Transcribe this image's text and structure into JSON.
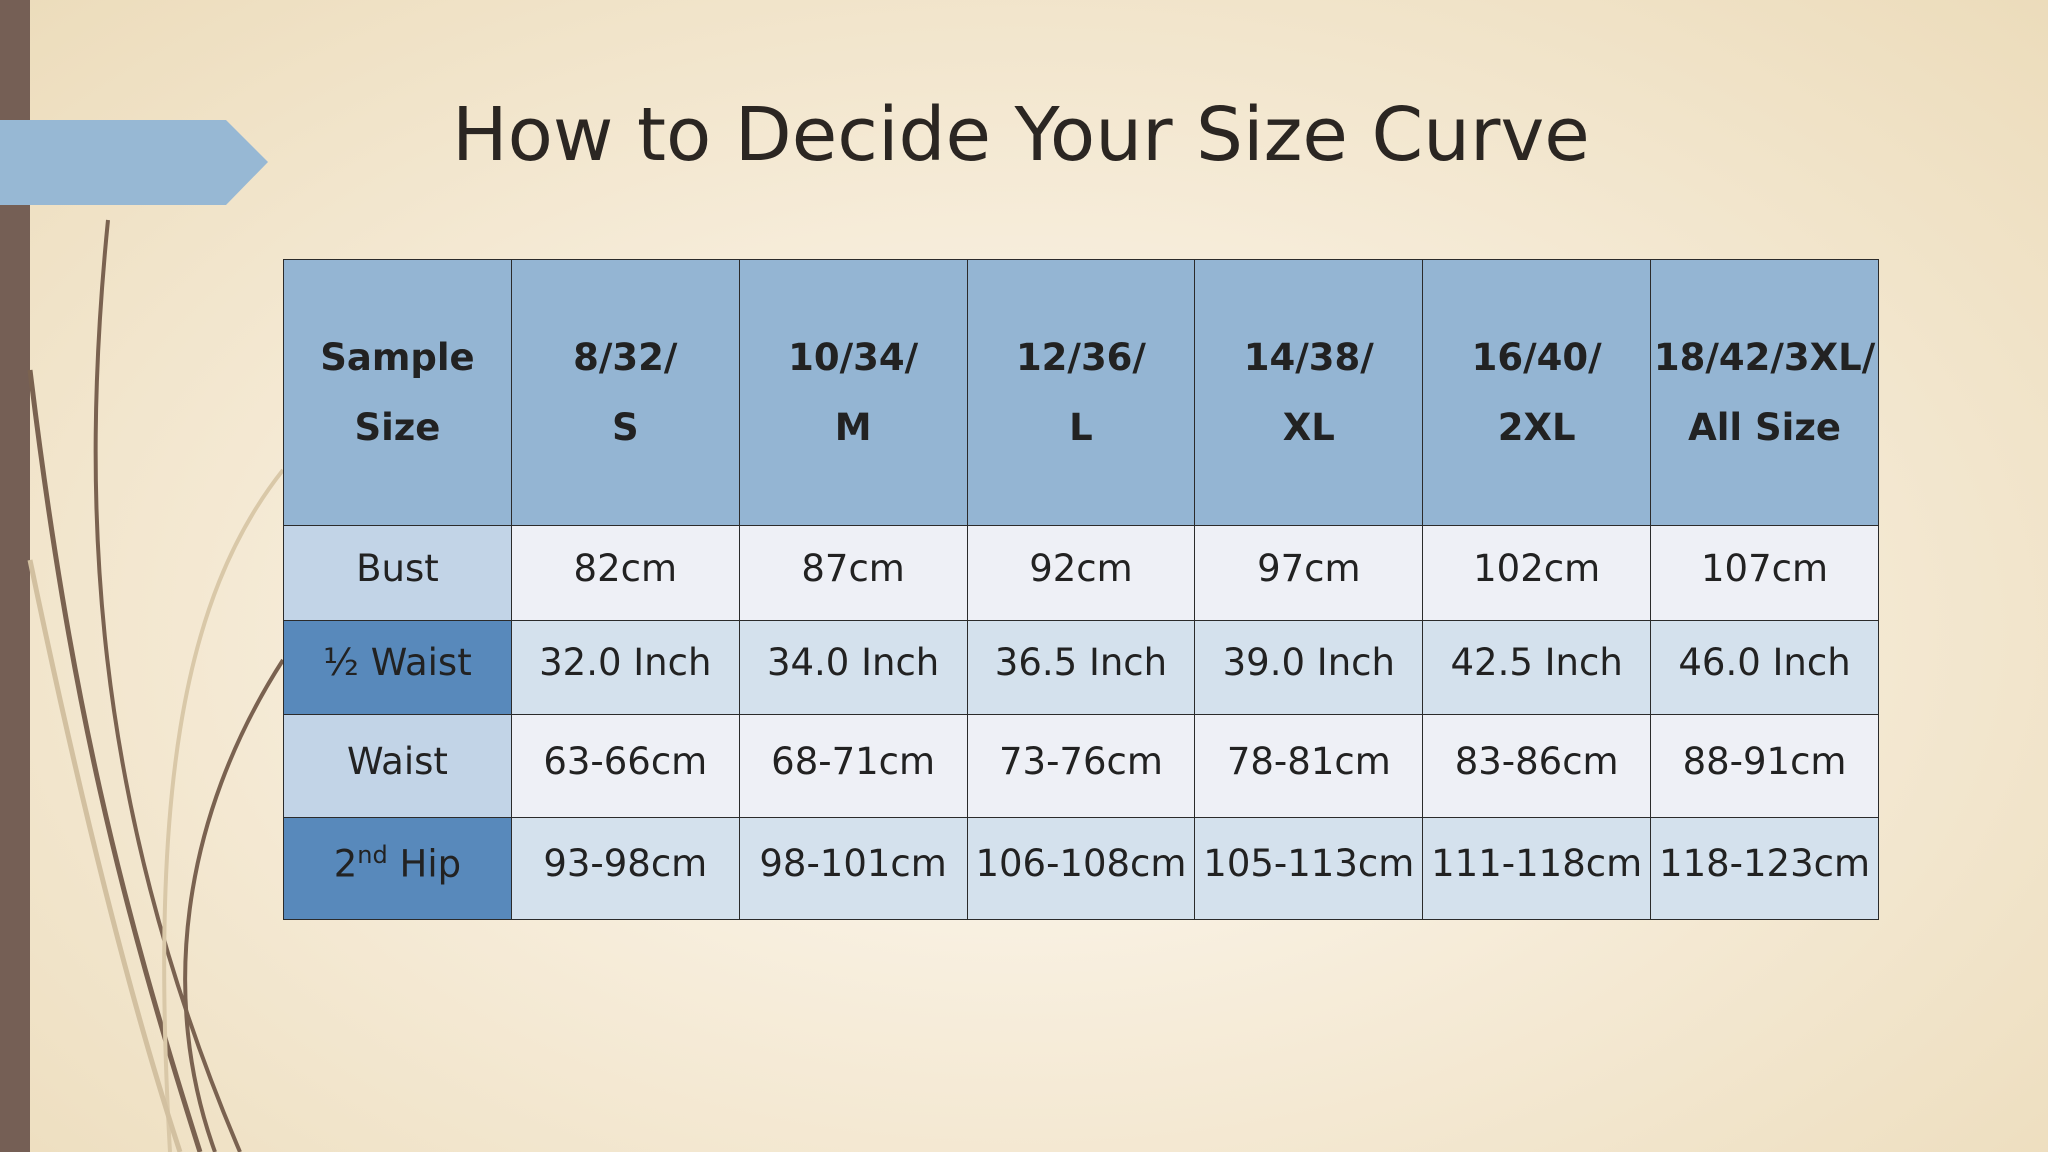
{
  "title": "How to Decide Your Size Curve",
  "table": {
    "header": [
      [
        "Sample",
        "Size"
      ],
      [
        "8/32/",
        "S"
      ],
      [
        "10/34/",
        "M"
      ],
      [
        "12/36/",
        "L"
      ],
      [
        "14/38/",
        "XL"
      ],
      [
        "16/40/",
        "2XL"
      ],
      [
        "18/42/3XL/",
        "All Size"
      ]
    ],
    "rows": [
      {
        "label": [
          "Bust"
        ],
        "cells": [
          "82cm",
          "87cm",
          "92cm",
          "97cm",
          "102cm",
          "107cm"
        ]
      },
      {
        "label": [
          "½ Waist"
        ],
        "cells": [
          "32.0 Inch",
          "34.0 Inch",
          "36.5 Inch",
          "39.0 Inch",
          "42.5 Inch",
          "46.0 Inch"
        ]
      },
      {
        "label": [
          "Waist"
        ],
        "cells": [
          "63-66cm",
          "68-71cm",
          "73-76cm",
          "78-81cm",
          "83-86cm",
          "88-91cm"
        ]
      },
      {
        "label": [
          "2",
          "nd",
          " Hip"
        ],
        "cells": [
          "93-98cm",
          "98-101cm",
          "106-108cm",
          "105-113cm",
          "111-118cm",
          "118-123cm"
        ]
      }
    ]
  }
}
